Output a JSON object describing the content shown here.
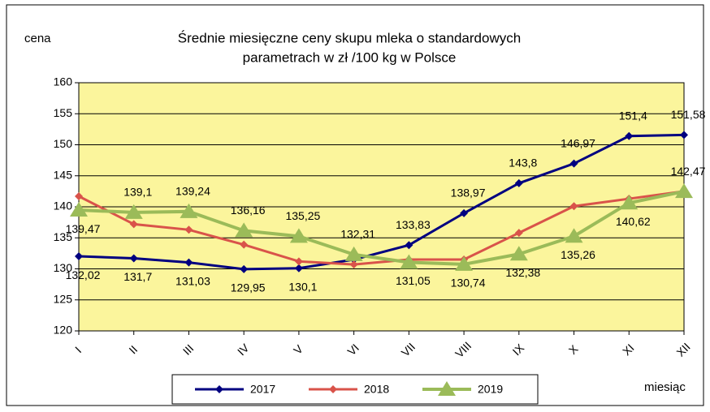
{
  "chart_data": {
    "type": "line",
    "title": [
      "Średnie miesięczne ceny skupu mleka o standardowych",
      "parametrach w zł /100 kg w Polsce"
    ],
    "y_label": "cena",
    "x_label": "miesiąc",
    "categories": [
      "I",
      "II",
      "III",
      "IV",
      "V",
      "VI",
      "VII",
      "VIII",
      "IX",
      "X",
      "XI",
      "XII"
    ],
    "series": [
      {
        "name": "2017",
        "color": "#000080",
        "marker": "diamond",
        "values": [
          132.02,
          131.7,
          131.03,
          129.95,
          130.1,
          131.5,
          133.83,
          138.97,
          143.8,
          146.97,
          151.4,
          151.58
        ],
        "value_labels": [
          "132,02",
          "131,7",
          "131,03",
          "129,95",
          "130,1",
          null,
          "133,83",
          "138,97",
          "143,8",
          "146,97",
          "151,4",
          "151,58"
        ]
      },
      {
        "name": "2018",
        "color": "#d9534a",
        "marker": "diamond",
        "values": [
          141.7,
          137.2,
          136.3,
          133.9,
          131.2,
          130.7,
          131.5,
          131.5,
          135.8,
          140.1,
          141.3,
          142.5
        ]
      },
      {
        "name": "2019",
        "color": "#9bbb59",
        "marker": "triangle",
        "values": [
          139.47,
          139.1,
          139.24,
          136.16,
          135.25,
          132.31,
          131.05,
          130.74,
          132.38,
          135.26,
          140.62,
          142.47
        ],
        "value_labels": [
          "139,47",
          "139,1",
          "139,24",
          "136,16",
          "135,25",
          "132,31",
          "131,05",
          "130,74",
          "132,38",
          "135,26",
          "140,62",
          "142,47"
        ]
      }
    ],
    "ylim": [
      120,
      160
    ],
    "yticks": [
      120,
      125,
      130,
      135,
      140,
      145,
      150,
      155,
      160
    ],
    "grid": true,
    "background": "#fbf59c"
  }
}
